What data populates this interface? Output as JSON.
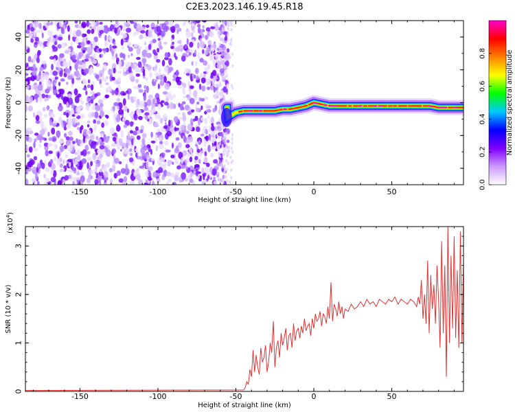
{
  "title": "C2E3.2023.146.19.45.R18",
  "chart_data": [
    {
      "type": "heatmap",
      "xlabel": "Height of straight line (km)",
      "ylabel": "Frequency (Hz)",
      "xlim": [
        -185,
        96
      ],
      "ylim": [
        -50,
        50
      ],
      "x_ticks": [
        -150,
        -100,
        -50,
        0,
        50
      ],
      "y_ticks": [
        -40,
        -20,
        0,
        20,
        40
      ],
      "colorbar": {
        "label": "Normalized spectral amplitude",
        "range": [
          0,
          1
        ],
        "ticks": [
          0.0,
          0.2,
          0.4,
          0.6,
          0.8
        ],
        "colormap": [
          "#ffffff",
          "#cc99ff",
          "#7f00ff",
          "#0000ff",
          "#00c8ff",
          "#00ff00",
          "#ffff00",
          "#ff8000",
          "#ff0000",
          "#ff00cc"
        ]
      },
      "noise_region_x": [
        -185,
        -55
      ],
      "signal_ridge": {
        "x": [
          -55,
          -50,
          -45,
          -40,
          -35,
          -30,
          -25,
          -20,
          -15,
          -10,
          -5,
          0,
          5,
          10,
          20,
          30,
          40,
          50,
          60,
          70,
          75,
          80,
          85,
          90,
          96
        ],
        "y": [
          -9,
          -6,
          -5,
          -5,
          -5,
          -5,
          -5,
          -4,
          -4,
          -3,
          -2,
          0,
          -1,
          -2,
          -2,
          -2,
          -2,
          -2,
          -2,
          -2,
          -2,
          -3,
          -3,
          -3,
          -3
        ]
      }
    },
    {
      "type": "line",
      "xlabel": "Height of straight line (km)",
      "ylabel": "SNR (10 * v/v)",
      "y_multiplier": "(x10",
      "y_multiplier_exp": "4",
      "y_multiplier_close": ")",
      "xlim": [
        -185,
        96
      ],
      "ylim": [
        0,
        3.4
      ],
      "x_ticks": [
        -150,
        -100,
        -50,
        0,
        50
      ],
      "y_ticks": [
        0,
        1,
        2,
        3
      ],
      "color": "#e03030",
      "series_x": [
        -185,
        -45,
        -44,
        -43,
        -42,
        -41,
        -40,
        -39,
        -38,
        -37,
        -36,
        -35,
        -34,
        -33,
        -32,
        -31,
        -30,
        -29,
        -28,
        -27,
        -26,
        -25,
        -24,
        -23,
        -22,
        -21,
        -20,
        -19,
        -18,
        -17,
        -16,
        -15,
        -14,
        -13,
        -12,
        -11,
        -10,
        -9,
        -8,
        -7,
        -6,
        -5,
        -4,
        -3,
        -2,
        -1,
        0,
        1,
        2,
        3,
        4,
        5,
        6,
        7,
        8,
        9,
        10,
        11,
        12,
        13,
        14,
        15,
        16,
        17,
        18,
        19,
        20,
        22,
        24,
        26,
        28,
        30,
        32,
        34,
        36,
        38,
        40,
        42,
        44,
        46,
        48,
        50,
        52,
        54,
        56,
        58,
        60,
        62,
        64,
        66,
        67,
        68,
        69,
        70,
        71,
        72,
        73,
        74,
        75,
        76,
        77,
        78,
        79,
        80,
        81,
        82,
        83,
        84,
        85,
        86,
        87,
        88,
        89,
        90,
        91,
        92,
        93,
        94,
        95,
        96
      ],
      "series_y": [
        0.02,
        0.03,
        0.08,
        0.2,
        0.15,
        0.45,
        0.3,
        0.85,
        0.4,
        0.75,
        0.5,
        0.35,
        0.9,
        0.6,
        0.7,
        0.95,
        0.4,
        0.6,
        1.0,
        0.8,
        1.45,
        0.5,
        0.9,
        1.05,
        0.7,
        1.2,
        0.95,
        1.1,
        1.3,
        0.85,
        1.15,
        1.2,
        0.9,
        1.4,
        1.05,
        1.25,
        1.3,
        1.1,
        1.35,
        1.2,
        1.5,
        1.25,
        1.35,
        1.4,
        1.15,
        1.5,
        1.3,
        1.6,
        1.45,
        1.5,
        1.65,
        1.35,
        1.6,
        1.55,
        1.4,
        1.75,
        1.5,
        2.25,
        1.45,
        1.8,
        1.7,
        1.55,
        1.85,
        1.6,
        1.75,
        1.5,
        1.7,
        1.65,
        1.8,
        1.7,
        1.75,
        1.85,
        1.75,
        1.9,
        1.8,
        1.85,
        1.75,
        1.9,
        1.85,
        1.8,
        1.9,
        1.85,
        1.95,
        1.8,
        1.9,
        1.85,
        1.8,
        1.9,
        1.85,
        1.75,
        1.95,
        1.8,
        2.3,
        1.5,
        2.0,
        1.4,
        2.7,
        1.2,
        2.4,
        1.7,
        2.2,
        1.4,
        2.6,
        1.9,
        0.9,
        3.1,
        1.2,
        2.6,
        0.3,
        3.4,
        1.0,
        2.8,
        1.3,
        3.2,
        1.1,
        2.5,
        0.9,
        3.3,
        1.0,
        2.7
      ]
    }
  ]
}
